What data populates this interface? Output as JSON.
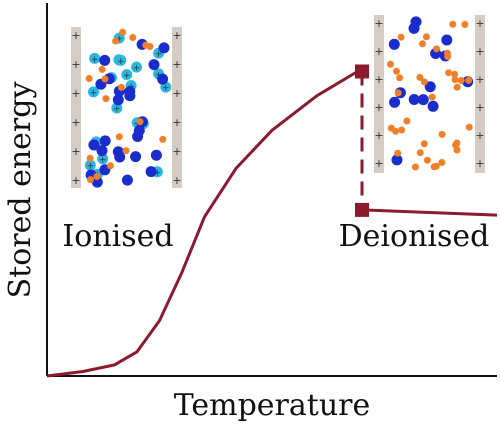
{
  "chart_data": {
    "type": "line",
    "xlabel": "Temperature",
    "ylabel": "Stored energy",
    "xlim": [
      0,
      1
    ],
    "ylim": [
      0,
      1
    ],
    "grid": false,
    "series": [
      {
        "style": "solid",
        "points": [
          [
            0,
            0
          ],
          [
            0.08,
            0.013
          ],
          [
            0.15,
            0.032
          ],
          [
            0.2,
            0.07
          ],
          [
            0.25,
            0.16
          ],
          [
            0.3,
            0.3
          ],
          [
            0.35,
            0.46
          ],
          [
            0.42,
            0.6
          ],
          [
            0.5,
            0.71
          ],
          [
            0.6,
            0.81
          ],
          [
            0.69,
            0.88
          ],
          [
            0.7,
            0.88
          ]
        ]
      },
      {
        "style": "dashed",
        "points": [
          [
            0.7,
            0.88
          ],
          [
            0.7,
            0.48
          ]
        ]
      },
      {
        "style": "solid",
        "points": [
          [
            0.7,
            0.48
          ],
          [
            1.0,
            0.465
          ]
        ]
      }
    ],
    "markers": [
      {
        "shape": "square",
        "x": 0.7,
        "y": 0.88
      },
      {
        "shape": "square",
        "x": 0.7,
        "y": 0.48
      }
    ],
    "line_color": "#8b1a2e",
    "annotations": [
      "Ionised",
      "Deionised"
    ]
  },
  "insets": {
    "ionised": {
      "label": "Ionised",
      "electrode_symbol": "+",
      "ion_color": "#29b6e0",
      "dark_particle_color": "#1a2ccc",
      "small_particle_color": "#f07f2a"
    },
    "deionised": {
      "label": "Deionised",
      "electrode_symbol": "+",
      "dark_particle_color": "#1a2ccc",
      "small_particle_color": "#f07f2a"
    }
  },
  "colors": {
    "axis": "#111111",
    "electrode": "#d6ccc4"
  }
}
